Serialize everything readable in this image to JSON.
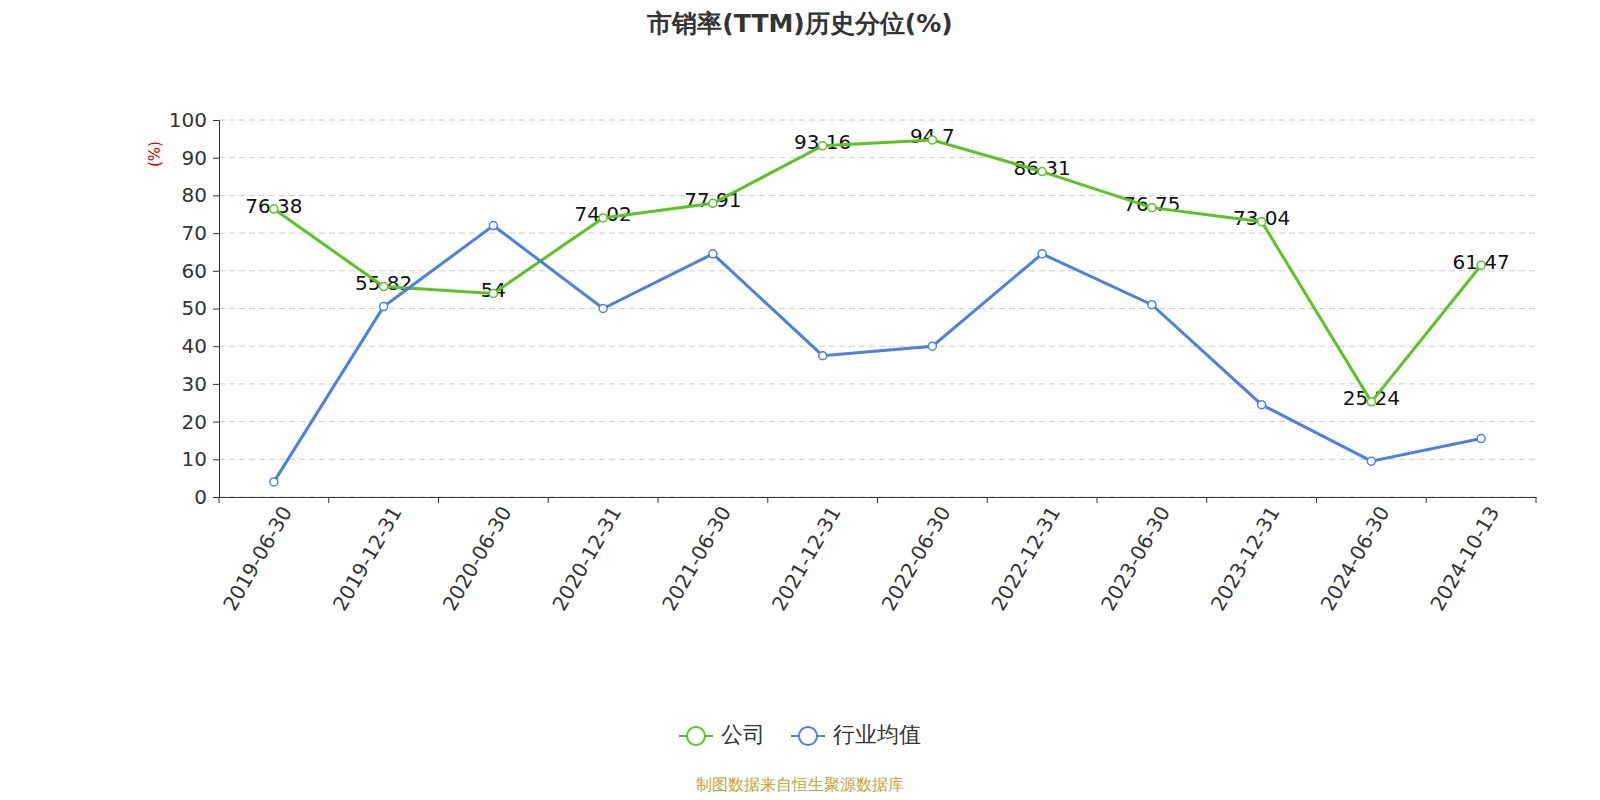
{
  "chart_data": {
    "type": "line",
    "title": "市销率(TTM)历史分位(%)",
    "y_label": "(%)",
    "source": "制图数据来自恒生聚源数据库",
    "categories": [
      "2019-06-30",
      "2019-12-31",
      "2020-06-30",
      "2020-12-31",
      "2021-06-30",
      "2021-12-31",
      "2022-06-30",
      "2022-12-31",
      "2023-06-30",
      "2023-12-31",
      "2024-06-30",
      "2024-10-13"
    ],
    "series": [
      {
        "name": "公司",
        "color": "#5cc226",
        "marker": "circle",
        "data_labels": true,
        "values": [
          76.38,
          55.82,
          54,
          74.02,
          77.91,
          93.16,
          94.7,
          86.31,
          76.75,
          73.04,
          25.24,
          61.47
        ]
      },
      {
        "name": "行业均值",
        "color": "#4e80de",
        "marker": "circle",
        "data_labels": false,
        "values": [
          4,
          50.5,
          72,
          50,
          64.5,
          37.5,
          40,
          64.5,
          51,
          24.5,
          9.5,
          15.5
        ]
      }
    ],
    "ylim": [
      0,
      100
    ],
    "yticks": [
      0,
      10,
      20,
      30,
      40,
      50,
      60,
      70,
      80,
      90,
      100
    ],
    "grid": true,
    "legend": "bottom"
  }
}
